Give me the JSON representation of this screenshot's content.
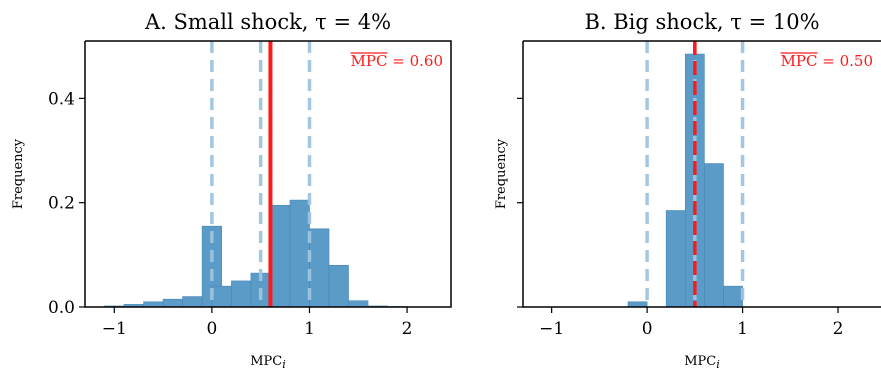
{
  "chart_data": [
    {
      "type": "bar",
      "panel": "A",
      "title": "A. Small shock, τ = 4%",
      "xlabel": "MPC_i",
      "ylabel": "Frequency",
      "xlim": [
        -1.3,
        2.45
      ],
      "ylim": [
        0,
        0.51
      ],
      "xticks": [
        -1,
        0,
        1,
        2
      ],
      "yticks": [
        0.0,
        0.2,
        0.4
      ],
      "y_tick_labels": [
        "0.0",
        "0.2",
        "0.4"
      ],
      "x_tick_labels": [
        "−1",
        "0",
        "1",
        "2"
      ],
      "show_y_tick_labels": true,
      "bin_width": 0.2,
      "bins": [
        {
          "x0": -1.1,
          "value": 0.002
        },
        {
          "x0": -0.9,
          "value": 0.005
        },
        {
          "x0": -0.7,
          "value": 0.01
        },
        {
          "x0": -0.5,
          "value": 0.015
        },
        {
          "x0": -0.3,
          "value": 0.02
        },
        {
          "x0": -0.1,
          "value": 0.155
        },
        {
          "x0": 0.0,
          "value": 0.04
        },
        {
          "x0": 0.2,
          "value": 0.05
        },
        {
          "x0": 0.4,
          "value": 0.065
        },
        {
          "x0": 0.6,
          "value": 0.195
        },
        {
          "x0": 0.8,
          "value": 0.205
        },
        {
          "x0": 1.0,
          "value": 0.15
        },
        {
          "x0": 1.2,
          "value": 0.08
        },
        {
          "x0": 1.4,
          "value": 0.012
        },
        {
          "x0": 1.6,
          "value": 0.002
        },
        {
          "x0": 1.8,
          "value": 0.001
        }
      ],
      "dashed_lines": [
        0,
        0.5,
        1
      ],
      "mean_line": 0.6,
      "annotation": {
        "bar_text": "MPC",
        "suffix": " = 0.60"
      }
    },
    {
      "type": "bar",
      "panel": "B",
      "title": "B. Big shock, τ = 10%",
      "xlabel": "MPC_i",
      "ylabel": "Frequency",
      "xlim": [
        -1.3,
        2.45
      ],
      "ylim": [
        0,
        0.51
      ],
      "xticks": [
        -1,
        0,
        1,
        2
      ],
      "yticks": [
        0.0,
        0.2,
        0.4
      ],
      "y_tick_labels": [
        "0.0",
        "0.2",
        "0.4"
      ],
      "x_tick_labels": [
        "−1",
        "0",
        "1",
        "2"
      ],
      "show_y_tick_labels": false,
      "bin_width": 0.2,
      "bins": [
        {
          "x0": -0.2,
          "value": 0.01
        },
        {
          "x0": 0.2,
          "value": 0.185
        },
        {
          "x0": 0.4,
          "value": 0.485
        },
        {
          "x0": 0.6,
          "value": 0.275
        },
        {
          "x0": 0.8,
          "value": 0.04
        }
      ],
      "dashed_lines": [
        0,
        0.5,
        1
      ],
      "mean_line": 0.5,
      "annotation": {
        "bar_text": "MPC",
        "suffix": " = 0.50"
      }
    }
  ],
  "colors": {
    "bar_fill": "#5b9bc8",
    "bar_edge": "#4a86b3",
    "dashed": "#9ec3e0",
    "mean_line": "#ff1a1a",
    "axis": "#000000"
  }
}
